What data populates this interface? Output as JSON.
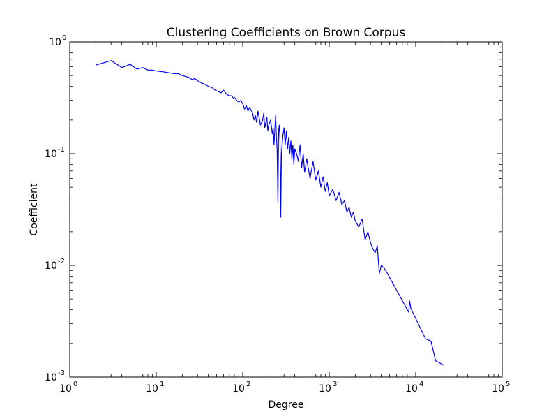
{
  "chart_data": {
    "type": "line",
    "title": "Clustering Coefficients on Brown Corpus",
    "xlabel": "Degree",
    "ylabel": "Coefficient",
    "xscale": "log",
    "yscale": "log",
    "xlim": [
      1,
      100000
    ],
    "ylim": [
      0.001,
      1
    ],
    "grid": false,
    "line_color": "#0000ff",
    "x_ticks": [
      {
        "base": "10",
        "exp": "0",
        "value": 1
      },
      {
        "base": "10",
        "exp": "1",
        "value": 10
      },
      {
        "base": "10",
        "exp": "2",
        "value": 100
      },
      {
        "base": "10",
        "exp": "3",
        "value": 1000
      },
      {
        "base": "10",
        "exp": "4",
        "value": 10000
      },
      {
        "base": "10",
        "exp": "5",
        "value": 100000
      }
    ],
    "y_ticks": [
      {
        "base": "10",
        "exp": "-3",
        "value": 0.001
      },
      {
        "base": "10",
        "exp": "-2",
        "value": 0.01
      },
      {
        "base": "10",
        "exp": "-1",
        "value": 0.1
      },
      {
        "base": "10",
        "exp": "0",
        "value": 1
      }
    ],
    "series": [
      {
        "x": [
          2,
          3,
          4,
          5,
          6,
          7,
          8,
          9,
          10,
          12,
          14,
          16,
          18,
          20,
          22,
          24,
          26,
          28,
          30,
          33,
          36,
          40,
          44,
          48,
          52,
          56,
          60,
          65,
          70,
          75,
          78,
          80,
          85,
          90,
          95,
          100,
          105,
          110,
          115,
          120,
          130,
          135,
          140,
          145,
          150,
          155,
          160,
          170,
          175,
          180,
          185,
          190,
          195,
          200,
          210,
          220,
          225,
          230,
          240,
          245,
          250,
          255,
          260,
          265,
          270,
          275,
          280,
          290,
          300,
          310,
          320,
          330,
          340,
          350,
          360,
          370,
          380,
          390,
          400,
          420,
          440,
          460,
          480,
          500,
          520,
          550,
          580,
          600,
          650,
          700,
          750,
          800,
          850,
          900,
          950,
          1000,
          1100,
          1200,
          1300,
          1400,
          1500,
          1600,
          1700,
          1800,
          1900,
          2000,
          2200,
          2400,
          2600,
          2800,
          3000,
          3200,
          3400,
          3600,
          3700,
          3800,
          4000,
          4300,
          4700,
          8300,
          8500,
          8800,
          13000,
          15000,
          17000,
          21000
        ],
        "y": [
          0.62,
          0.68,
          0.59,
          0.63,
          0.57,
          0.59,
          0.56,
          0.56,
          0.55,
          0.54,
          0.53,
          0.52,
          0.52,
          0.5,
          0.49,
          0.48,
          0.46,
          0.47,
          0.45,
          0.43,
          0.42,
          0.4,
          0.39,
          0.37,
          0.36,
          0.35,
          0.37,
          0.34,
          0.33,
          0.33,
          0.31,
          0.32,
          0.3,
          0.29,
          0.3,
          0.28,
          0.25,
          0.27,
          0.24,
          0.26,
          0.23,
          0.2,
          0.22,
          0.19,
          0.24,
          0.21,
          0.18,
          0.2,
          0.23,
          0.17,
          0.19,
          0.21,
          0.16,
          0.18,
          0.2,
          0.15,
          0.17,
          0.12,
          0.22,
          0.14,
          0.11,
          0.037,
          0.16,
          0.18,
          0.13,
          0.027,
          0.1,
          0.14,
          0.17,
          0.12,
          0.16,
          0.11,
          0.14,
          0.1,
          0.13,
          0.09,
          0.12,
          0.08,
          0.11,
          0.1,
          0.085,
          0.12,
          0.075,
          0.1,
          0.068,
          0.09,
          0.07,
          0.06,
          0.085,
          0.058,
          0.07,
          0.05,
          0.062,
          0.046,
          0.055,
          0.042,
          0.048,
          0.038,
          0.045,
          0.035,
          0.038,
          0.03,
          0.033,
          0.027,
          0.03,
          0.025,
          0.022,
          0.026,
          0.017,
          0.02,
          0.016,
          0.014,
          0.013,
          0.015,
          0.011,
          0.0085,
          0.01,
          0.0095,
          0.0085,
          0.0038,
          0.0048,
          0.0041,
          0.0022,
          0.0021,
          0.0014,
          0.00128
        ]
      }
    ]
  }
}
